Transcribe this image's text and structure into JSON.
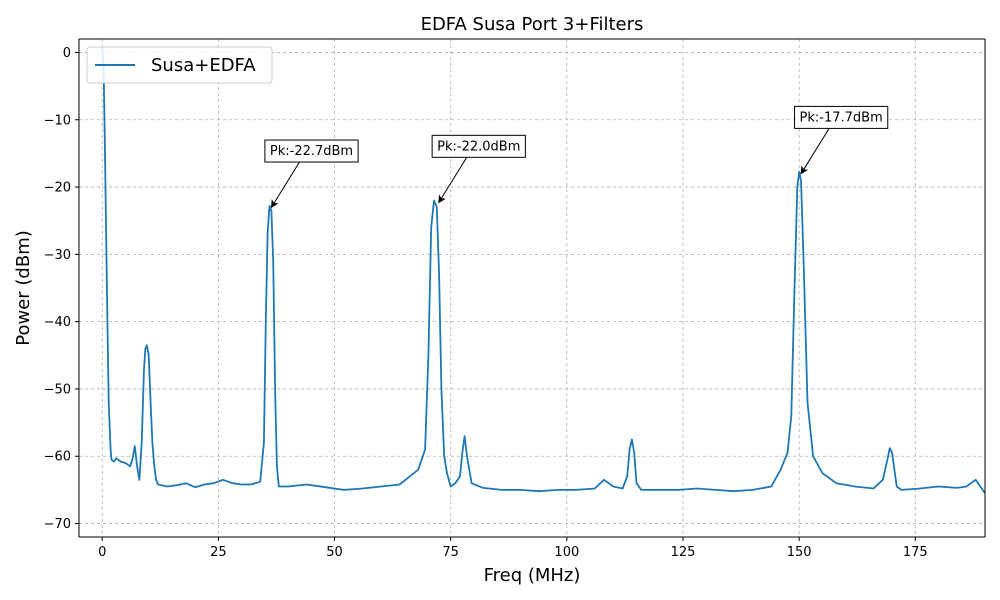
{
  "chart_data": {
    "type": "line",
    "title": "EDFA Susa Port 3+Filters",
    "xlabel": "Freq (MHz)",
    "ylabel": "Power (dBm)",
    "xlim": [
      -5,
      190
    ],
    "ylim": [
      -72,
      2
    ],
    "xticks": [
      0,
      25,
      50,
      75,
      100,
      125,
      150,
      175
    ],
    "yticks": [
      0,
      -10,
      -20,
      -30,
      -40,
      -50,
      -60,
      -70
    ],
    "xtick_labels": [
      "0",
      "25",
      "50",
      "75",
      "100",
      "125",
      "150",
      "175"
    ],
    "ytick_labels": [
      "0",
      "−10",
      "−20",
      "−30",
      "−40",
      "−50",
      "−60",
      "−70"
    ],
    "grid": true,
    "legend_position": "upper-left",
    "colors": {
      "series": "#1f77b4",
      "grid": "#b0b0b0"
    },
    "series": [
      {
        "name": "Susa+EDFA",
        "x": [
          0,
          0.3,
          0.6,
          1,
          1.4,
          1.8,
          2.0,
          2.5,
          3,
          4,
          5,
          6,
          6.5,
          7,
          7.5,
          8,
          8.5,
          9,
          9.3,
          9.6,
          10,
          10.4,
          10.8,
          11.2,
          11.6,
          12,
          14,
          16,
          18,
          20,
          22,
          24,
          26,
          28,
          30,
          32,
          34,
          34.8,
          35.2,
          35.6,
          36,
          36.4,
          36.8,
          37.2,
          37.6,
          38,
          40,
          44,
          48,
          52,
          56,
          60,
          64,
          68,
          69.5,
          70.2,
          70.8,
          71.4,
          72,
          72.5,
          73,
          73.6,
          74.2,
          75,
          76,
          77,
          77.5,
          78,
          78.5,
          79.5,
          82,
          86,
          90,
          94,
          98,
          102,
          106,
          108,
          110,
          112,
          113,
          113.5,
          114,
          114.5,
          115,
          116,
          120,
          124,
          128,
          132,
          136,
          140,
          144,
          146,
          147.5,
          148.3,
          149,
          149.6,
          150,
          150.4,
          151,
          151.8,
          153,
          155,
          158,
          162,
          166,
          168,
          169,
          169.5,
          170,
          170.5,
          171,
          172,
          176,
          180,
          184,
          186,
          188,
          190
        ],
        "y": [
          0.8,
          -2,
          -15,
          -35,
          -52,
          -59,
          -60.5,
          -60.8,
          -60.3,
          -60.8,
          -61,
          -61.5,
          -60.5,
          -58.5,
          -61.5,
          -63.5,
          -58,
          -47,
          -44,
          -43.5,
          -45,
          -52,
          -58,
          -61.5,
          -63.5,
          -64.2,
          -64.5,
          -64.3,
          -64,
          -64.6,
          -64.2,
          -64,
          -63.5,
          -64,
          -64.2,
          -64.2,
          -63.8,
          -58,
          -40,
          -27,
          -22.8,
          -23.5,
          -31,
          -50,
          -61.5,
          -64.5,
          -64.5,
          -64.2,
          -64.6,
          -65,
          -64.8,
          -64.5,
          -64.2,
          -62,
          -59,
          -45,
          -26,
          -22,
          -23,
          -33,
          -50,
          -60,
          -62.5,
          -64.5,
          -64,
          -63,
          -59.5,
          -57,
          -60,
          -64,
          -64.7,
          -65,
          -65,
          -65.2,
          -65,
          -65,
          -64.8,
          -63.5,
          -64.5,
          -64.8,
          -63,
          -59,
          -57.5,
          -59.5,
          -64,
          -65,
          -65,
          -65,
          -64.8,
          -65,
          -65.2,
          -65,
          -64.5,
          -62,
          -59.5,
          -54,
          -35,
          -20,
          -17.7,
          -19,
          -32,
          -52,
          -60,
          -62.5,
          -64,
          -64.5,
          -64.8,
          -63.5,
          -60.5,
          -58.8,
          -59.5,
          -62,
          -64.5,
          -65,
          -64.8,
          -64.5,
          -64.7,
          -64.5,
          -63.5,
          -65.5
        ]
      }
    ],
    "annotations": [
      {
        "text": "Pk:-22.7dBm",
        "x": 36,
        "y": -22.7,
        "text_x": 36,
        "text_y": -14.5
      },
      {
        "text": "Pk:-22.0dBm",
        "x": 72,
        "y": -22.0,
        "text_x": 72,
        "text_y": -13.8
      },
      {
        "text": "Pk:-17.7dBm",
        "x": 150,
        "y": -17.7,
        "text_x": 150,
        "text_y": -9.5
      }
    ]
  }
}
